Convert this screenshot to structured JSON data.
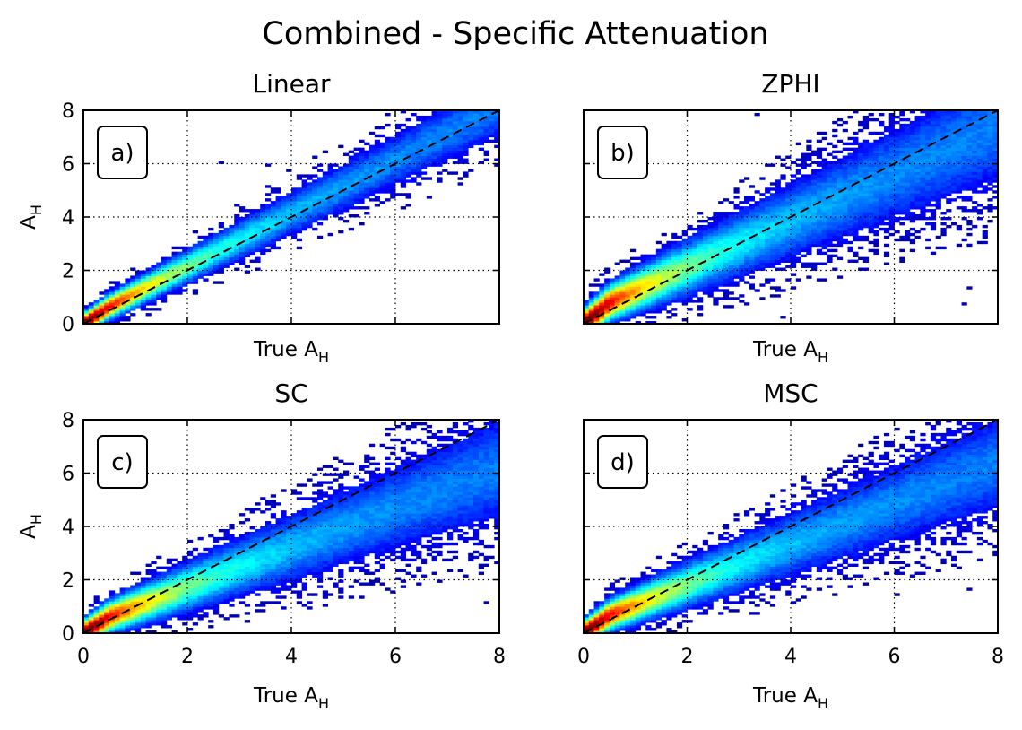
{
  "figure": {
    "suptitle": "Combined - Specific Attenuation"
  },
  "colors": {
    "identity_line": "#000000",
    "colormap_jet": [
      "#00007f",
      "#0000ff",
      "#007fff",
      "#00ffff",
      "#7fff7f",
      "#ffff00",
      "#ff7f00",
      "#ff0000",
      "#7f0000"
    ]
  },
  "chart_data": [
    {
      "type": "heatmap",
      "title": "Linear",
      "panel_label": "a)",
      "xlabel": "True A",
      "xlabel_sub": "H",
      "ylabel": "A",
      "ylabel_sub": "H",
      "xlim": [
        0,
        8
      ],
      "ylim": [
        0,
        8
      ],
      "xticks": [
        0,
        2,
        4,
        6,
        8
      ],
      "yticks": [
        0,
        2,
        4,
        6,
        8
      ],
      "show_xticklabels": false,
      "show_yticklabels": true,
      "grid": true,
      "identity_line": [
        [
          0,
          0
        ],
        [
          8,
          8
        ]
      ],
      "density_model": {
        "slope": 1.0,
        "intercept": 0.15,
        "spread_base": 0.25,
        "spread_growth": 0.07,
        "scatter": 0.08
      }
    },
    {
      "type": "heatmap",
      "title": "ZPHI",
      "panel_label": "b)",
      "xlabel": "True A",
      "xlabel_sub": "H",
      "ylabel": "",
      "ylabel_sub": "",
      "xlim": [
        0,
        8
      ],
      "ylim": [
        0,
        8
      ],
      "xticks": [
        0,
        2,
        4,
        6,
        8
      ],
      "yticks": [
        0,
        2,
        4,
        6,
        8
      ],
      "show_xticklabels": false,
      "show_yticklabels": false,
      "grid": true,
      "identity_line": [
        [
          0,
          0
        ],
        [
          8,
          8
        ]
      ],
      "density_model": {
        "slope": 0.88,
        "intercept": 0.35,
        "spread_base": 0.35,
        "spread_growth": 0.14,
        "scatter": 0.15
      }
    },
    {
      "type": "heatmap",
      "title": "SC",
      "panel_label": "c)",
      "xlabel": "True A",
      "xlabel_sub": "H",
      "ylabel": "A",
      "ylabel_sub": "H",
      "xlim": [
        0,
        8
      ],
      "ylim": [
        0,
        8
      ],
      "xticks": [
        0,
        2,
        4,
        6,
        8
      ],
      "yticks": [
        0,
        2,
        4,
        6,
        8
      ],
      "show_xticklabels": true,
      "show_yticklabels": true,
      "grid": true,
      "identity_line": [
        [
          0,
          0
        ],
        [
          8,
          8
        ]
      ],
      "density_model": {
        "slope": 0.74,
        "intercept": 0.25,
        "spread_base": 0.3,
        "spread_growth": 0.13,
        "scatter": 0.14
      }
    },
    {
      "type": "heatmap",
      "title": "MSC",
      "panel_label": "d)",
      "xlabel": "True A",
      "xlabel_sub": "H",
      "ylabel": "",
      "ylabel_sub": "",
      "xlim": [
        0,
        8
      ],
      "ylim": [
        0,
        8
      ],
      "xticks": [
        0,
        2,
        4,
        6,
        8
      ],
      "yticks": [
        0,
        2,
        4,
        6,
        8
      ],
      "show_xticklabels": true,
      "show_yticklabels": false,
      "grid": true,
      "identity_line": [
        [
          0,
          0
        ],
        [
          8,
          8
        ]
      ],
      "density_model": {
        "slope": 0.76,
        "intercept": 0.3,
        "spread_base": 0.3,
        "spread_growth": 0.12,
        "scatter": 0.13
      }
    }
  ]
}
